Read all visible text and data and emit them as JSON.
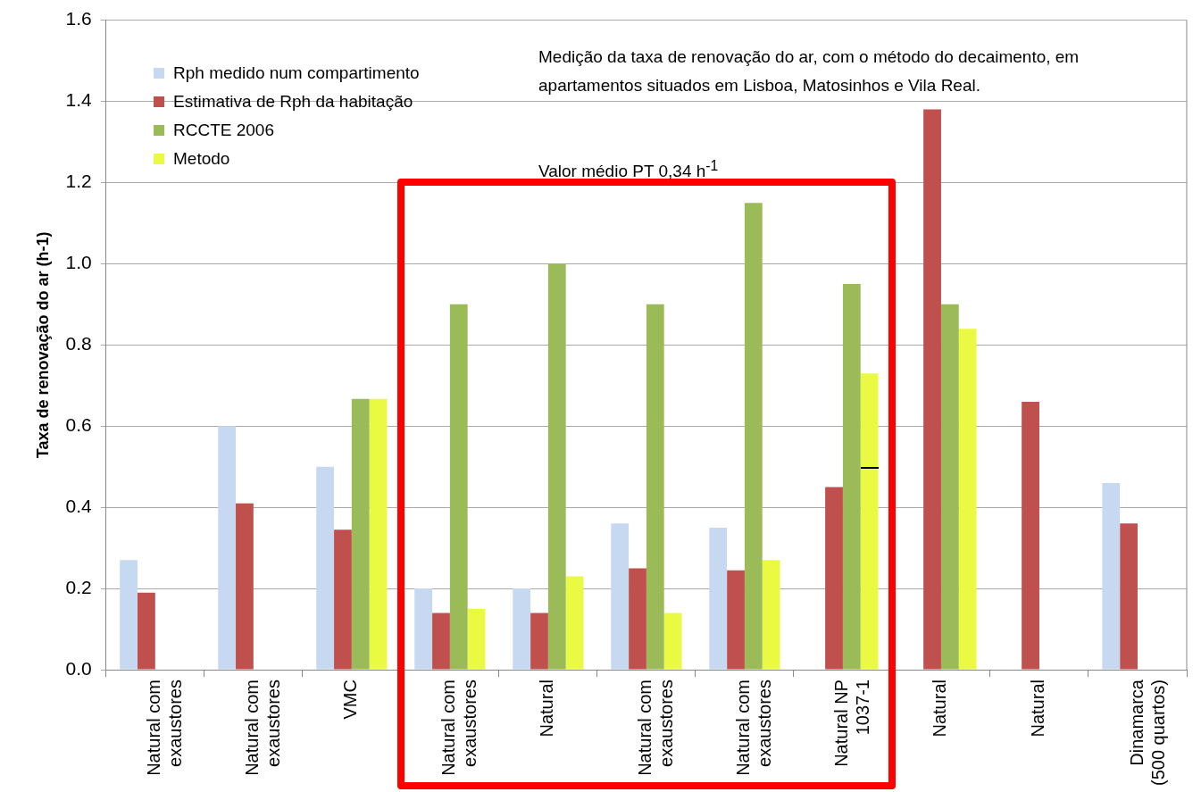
{
  "chart_data": {
    "type": "bar",
    "ylabel": "Taxa de renovação do ar (h-1)",
    "categories": [
      "Natural com exaustores",
      "Natural com exaustores",
      "VMC",
      "Natural com exaustores",
      "Natural",
      "Natural com exaustores",
      "Natural com exaustores",
      "Natural NP 1037-1",
      "Natural",
      "Natural",
      "Dinamarca (500 quartos)"
    ],
    "series": [
      {
        "name": "Rph medido num compartimento",
        "color": "#c6d9f1",
        "values": [
          0.27,
          0.6,
          0.5,
          0.2,
          0.2,
          0.36,
          0.35,
          null,
          null,
          null,
          0.46
        ]
      },
      {
        "name": "Estimativa de Rph da habitação",
        "color": "#c0504d",
        "values": [
          0.19,
          0.41,
          0.345,
          0.14,
          0.14,
          0.25,
          0.245,
          0.45,
          1.38,
          0.66,
          0.36
        ]
      },
      {
        "name": "RCCTE 2006",
        "color": "#9bbb59",
        "values": [
          null,
          null,
          0.667,
          0.9,
          1.0,
          0.9,
          1.15,
          0.95,
          0.9,
          null,
          null
        ]
      },
      {
        "name": "Metodo",
        "color": "#eaf941",
        "values": [
          null,
          null,
          0.667,
          0.15,
          0.23,
          0.14,
          0.27,
          0.73,
          0.84,
          null,
          null
        ]
      }
    ],
    "ylim": [
      0,
      1.6
    ],
    "yticks": [
      {
        "value": 0,
        "label": "0.0"
      },
      {
        "value": 0.2,
        "label": "0.2"
      },
      {
        "value": 0.4,
        "label": "0.4"
      },
      {
        "value": 0.6,
        "label": "0.6"
      },
      {
        "value": 0.8,
        "label": "0.8"
      },
      {
        "value": 1,
        "label": "1.0"
      },
      {
        "value": 1.2,
        "label": "1.2"
      },
      {
        "value": 1.4,
        "label": "1.4"
      },
      {
        "value": 1.6,
        "label": "1.6"
      }
    ],
    "grid": "y",
    "legend": "top left",
    "annotations": [
      "Medição da taxa de renovação do ar, com o método do decaimento, em apartamentos situados em Lisboa, Matosinhos e Vila Real.",
      "Valor médio PT 0,34 h$^{-1}$"
    ]
  }
}
